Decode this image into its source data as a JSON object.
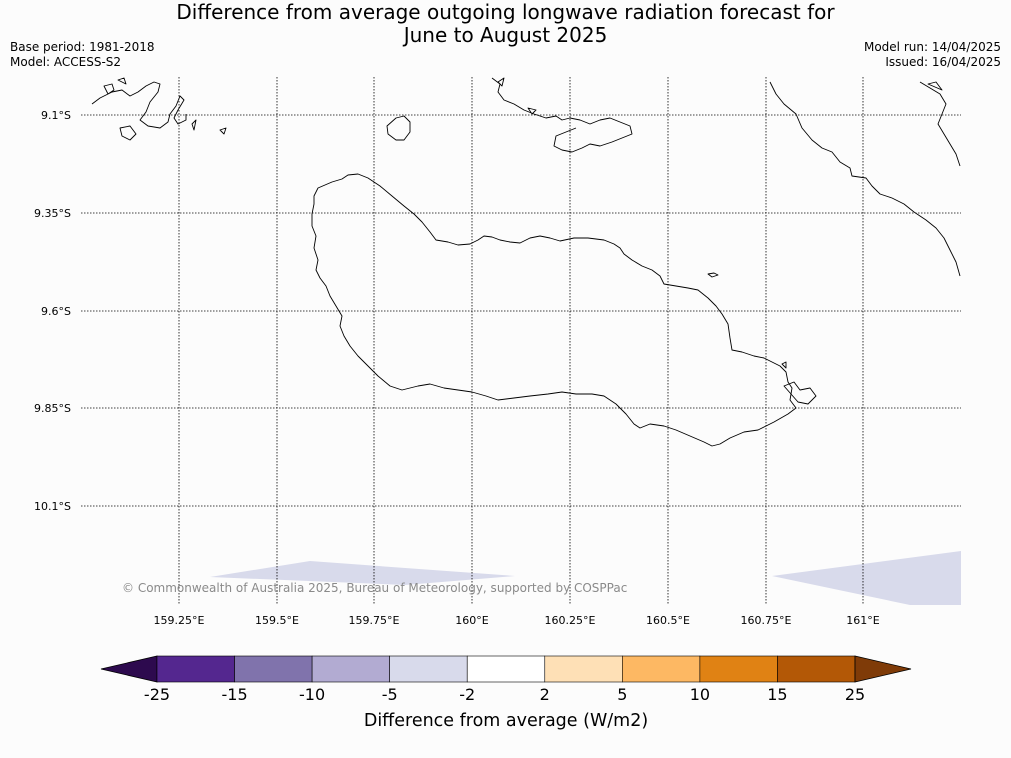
{
  "title": {
    "line1": "Difference from average outgoing longwave radiation forecast for",
    "line2": "June to August 2025"
  },
  "info_left": {
    "base_period": "Base period: 1981-2018",
    "model": "Model: ACCESS-S2"
  },
  "info_right": {
    "model_run": "Model run: 14/04/2025",
    "issued": "Issued: 16/04/2025"
  },
  "map": {
    "lon_labels": [
      "159.25°E",
      "159.5°E",
      "159.75°E",
      "160°E",
      "160.25°E",
      "160.5°E",
      "160.75°E",
      "161°E"
    ],
    "lat_labels": [
      "9.1°S",
      "9.35°S",
      "9.6°S",
      "9.85°S",
      "10.1°S"
    ],
    "copyright": "© Commonwealth of Australia 2025, Bureau of Meteorology, supported by COSPPac"
  },
  "colorbar": {
    "title": "Difference from average (W/m2)",
    "tick_labels": [
      "-25",
      "-15",
      "-10",
      "-5",
      "-2",
      "2",
      "5",
      "10",
      "15",
      "25"
    ],
    "colors": {
      "under": "#2d0a4e",
      "bins": [
        "#54278f",
        "#8073ac",
        "#b2abd2",
        "#d8daeb",
        "#ffffff",
        "#fee0b6",
        "#fdb863",
        "#e08214",
        "#b35806"
      ],
      "over": "#7f3b08"
    }
  }
}
